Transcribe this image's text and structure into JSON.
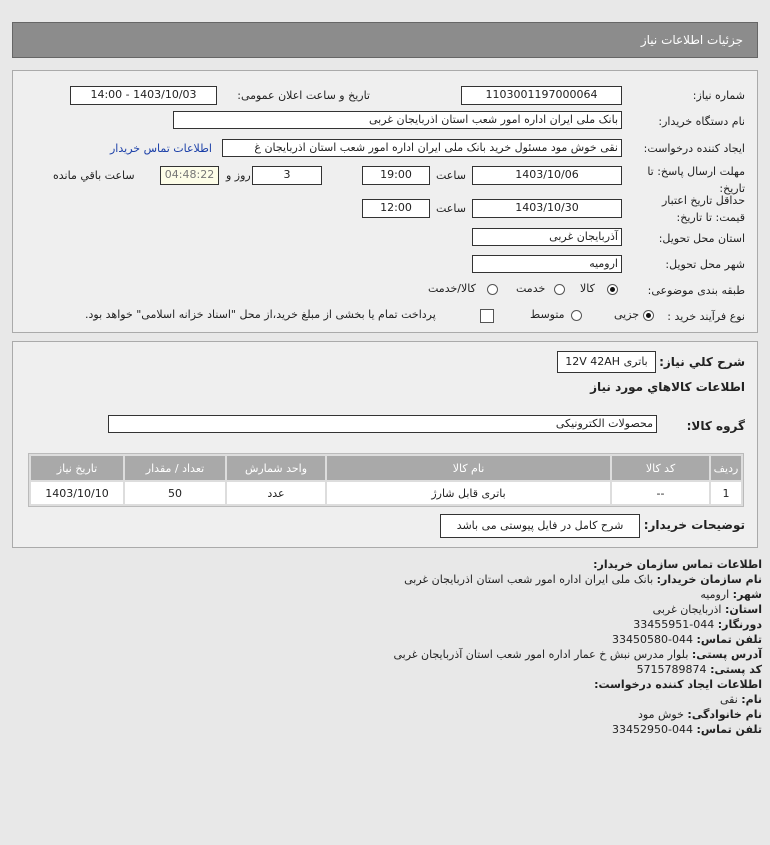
{
  "header": {
    "title": "جزئیات اطلاعات نیاز"
  },
  "details": {
    "need_number_label": "شماره نیاز:",
    "need_number": "1103001197000064",
    "announce_label": "تاریخ و ساعت اعلان عمومی:",
    "announce_value": "1403/10/03 - 14:00",
    "buyer_label": "نام دستگاه خریدار:",
    "buyer_value": "بانک ملی ایران اداره امور شعب استان اذربایجان غربی",
    "creator_label": "ایجاد کننده درخواست:",
    "creator_value": "نقی  خوش مود مسئول خرید بانک ملی ایران اداره امور شعب استان اذربایجان غ",
    "contact_link": "اطلاعات تماس خریدار",
    "deadline_label1": "مهلت ارسال پاسخ: تا",
    "deadline_label2": "تاریخ:",
    "deadline_date": "1403/10/06",
    "time_label": "ساعت",
    "deadline_time": "19:00",
    "days": "3",
    "days_label": "روز و",
    "remaining": "04:48:22",
    "remaining_label": "ساعت باقي مانده",
    "validity_label1": "حداقل تاریخ اعتبار",
    "validity_label2": "قیمت: تا تاریخ:",
    "validity_date": "1403/10/30",
    "validity_time": "12:00",
    "province_label": "استان محل تحویل:",
    "province": "آذربایجان غربی",
    "city_label": "شهر محل تحویل:",
    "city": "ارومیه",
    "category_label": "طبقه بندی موضوعی:",
    "category_options": [
      "کالا",
      "خدمت",
      "کالا/خدمت"
    ],
    "category_selected": "کالا",
    "process_label": "نوع فرآیند خرید :",
    "process_options": [
      "جزیی",
      "متوسط"
    ],
    "process_selected": "جزیی",
    "payment_note": "پرداخت تمام یا بخشی از مبلغ خرید،از محل \"اسناد خزانه اسلامی\" خواهد بود."
  },
  "needs": {
    "desc_label": "شرح كلي نياز:",
    "desc_value": "باتری 12V 42AH",
    "items_title": "اطلاعات كالاهاي مورد نياز",
    "group_label": "گروه کالا:",
    "group_value": "محصولات الکترونیکی",
    "columns": [
      "ردیف",
      "کد کالا",
      "نام کالا",
      "واحد شمارش",
      "تعداد / مقدار",
      "تاریخ نیاز"
    ],
    "rows": [
      [
        "1",
        "--",
        "باتری قابل شارژ",
        "عدد",
        "50",
        "1403/10/10"
      ]
    ],
    "notes_label": "توضیحات خریدار:",
    "notes_value": "شرح کامل در فایل پیوستی می باشد"
  },
  "contact": {
    "title": "اطلاعات تماس سازمان خریدار:",
    "lines": [
      {
        "k": "نام سازمان خریدار:",
        "v": "بانک ملی ایران اداره امور شعب استان اذربایجان غربی"
      },
      {
        "k": "شهر:",
        "v": "ارومیه"
      },
      {
        "k": "استان:",
        "v": "اذربایجان غربی"
      },
      {
        "k": "دورنگار:",
        "v": "044-33455951"
      },
      {
        "k": "تلفن تماس:",
        "v": "044-33450580"
      },
      {
        "k": "آدرس پستی:",
        "v": "بلوار مدرس نبش خ عمار اداره امور شعب استان آذربایجان غربی"
      },
      {
        "k": "کد پستی:",
        "v": "5715789874"
      }
    ],
    "creator_title": "اطلاعات ایجاد کننده درخواست:",
    "creator_lines": [
      {
        "k": "نام:",
        "v": "نقی"
      },
      {
        "k": "نام خانوادگی:",
        "v": "خوش مود"
      },
      {
        "k": "تلفن تماس:",
        "v": "044-33452950"
      }
    ]
  }
}
